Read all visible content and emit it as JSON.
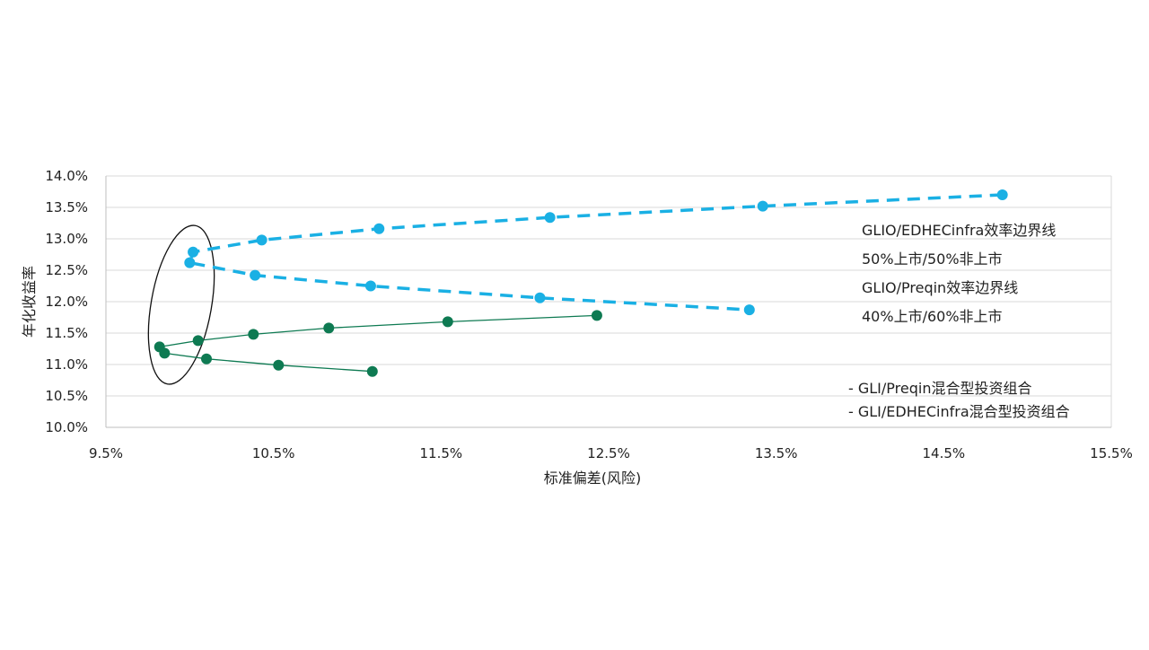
{
  "chart_data": {
    "type": "line",
    "title": "",
    "xlabel": "标准偏差(风险)",
    "ylabel": "年化收益率",
    "xlim": [
      9.5,
      15.5
    ],
    "ylim": [
      10.0,
      14.0
    ],
    "xticks": [
      9.5,
      10.5,
      11.5,
      12.5,
      13.5,
      14.5,
      15.5
    ],
    "yticks": [
      10.0,
      10.5,
      11.0,
      11.5,
      12.0,
      12.5,
      13.0,
      13.5,
      14.0
    ],
    "x_tick_labels": [
      "9.5%",
      "10.5%",
      "11.5%",
      "12.5%",
      "13.5%",
      "14.5%",
      "15.5%"
    ],
    "y_tick_labels": [
      "10.0%",
      "10.5%",
      "11.0%",
      "11.5%",
      "12.0%",
      "12.5%",
      "13.0%",
      "13.5%",
      "14.0%"
    ],
    "grid": true,
    "legend_position": "bottom-right",
    "series": [
      {
        "name": "- GLI/EDHECinfra混合型投资组合",
        "color": "#1ab0e4",
        "style": "dashed",
        "x": [
          14.85,
          13.42,
          12.15,
          11.13,
          10.43,
          10.02,
          10.0,
          10.39,
          11.08,
          12.09,
          13.34
        ],
        "y": [
          13.7,
          13.52,
          13.34,
          13.16,
          12.98,
          12.79,
          12.62,
          12.42,
          12.25,
          12.06,
          11.87
        ]
      },
      {
        "name": "- GLI/Preqin混合型投资组合",
        "color": "#0e7a52",
        "style": "solid",
        "x": [
          12.43,
          11.54,
          10.83,
          10.38,
          10.05,
          9.82,
          9.85,
          10.1,
          10.53,
          11.09
        ],
        "y": [
          11.78,
          11.68,
          11.58,
          11.48,
          11.38,
          11.28,
          11.18,
          11.09,
          10.99,
          10.89
        ]
      }
    ],
    "annotations": [
      "GLIO/EDHECinfra效率边界线",
      "50%上市/50%非上市",
      "GLIO/Preqin效率边界线",
      "40%上市/60%非上市"
    ],
    "highlight_ellipse": {
      "cx": 9.95,
      "cy": 11.95,
      "rx": 0.18,
      "ry": 1.28,
      "rotation": 10
    }
  }
}
